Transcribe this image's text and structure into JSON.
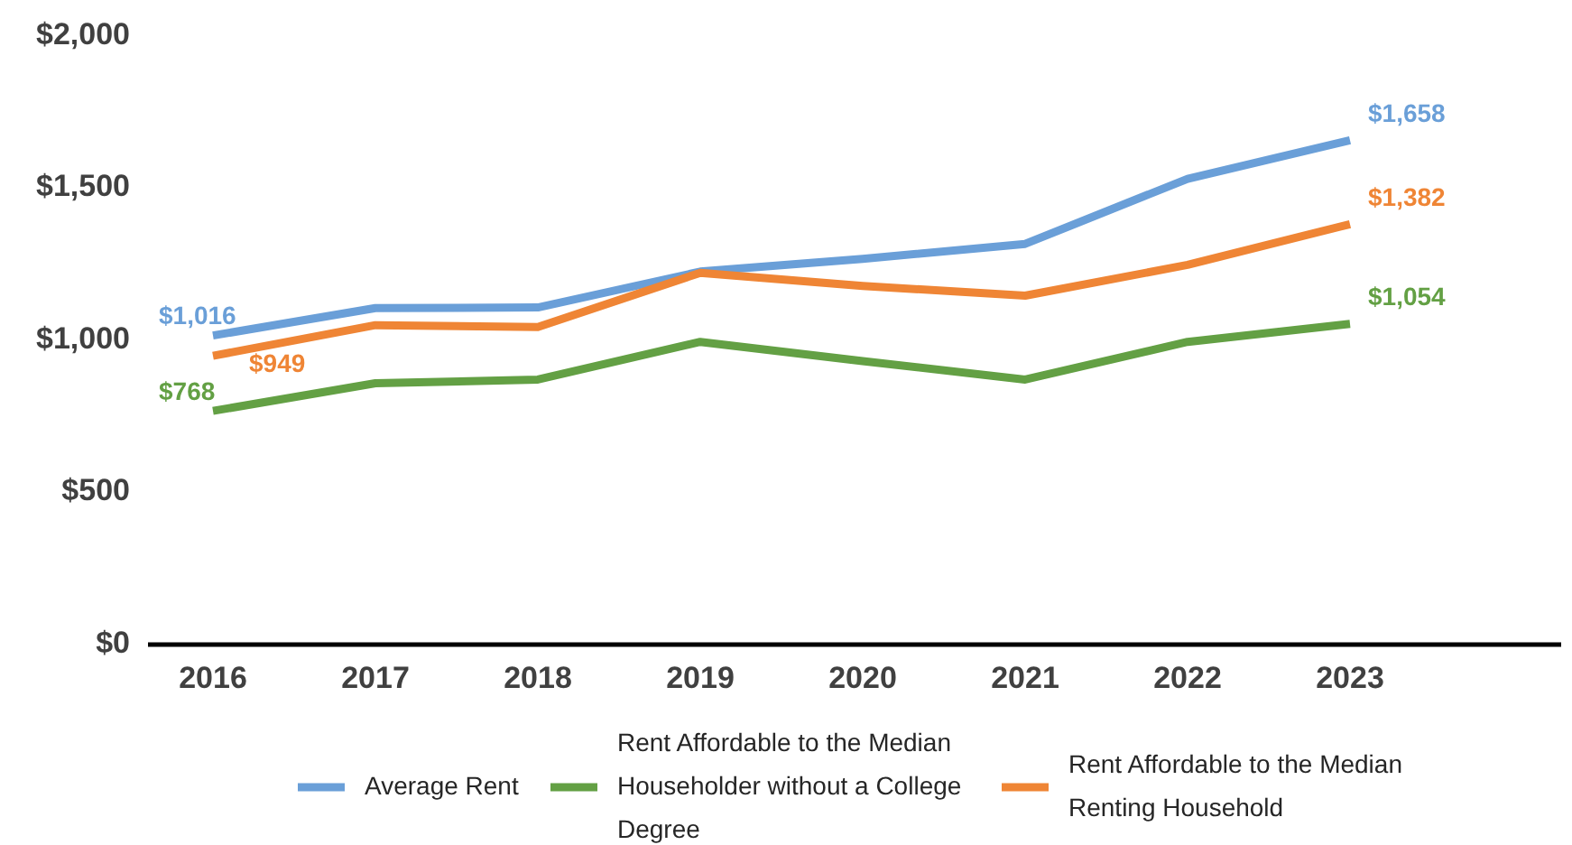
{
  "chart_data": {
    "type": "line",
    "categories": [
      "2016",
      "2017",
      "2018",
      "2019",
      "2020",
      "2021",
      "2022",
      "2023"
    ],
    "ylim": [
      0,
      2000
    ],
    "yticks": [
      {
        "value": 0,
        "label": "$0"
      },
      {
        "value": 500,
        "label": "$500"
      },
      {
        "value": 1000,
        "label": "$1,000"
      },
      {
        "value": 1500,
        "label": "$1,500"
      },
      {
        "value": 2000,
        "label": "$2,000"
      }
    ],
    "grid": false,
    "legend": "bottom",
    "marker": "none",
    "line_style": "solid",
    "series": [
      {
        "name": "Average Rent",
        "color": "#6a9fd8",
        "values": [
          1016,
          1106,
          1108,
          1226,
          1268,
          1317,
          1531,
          1658
        ],
        "value_labels": [
          "$1,016",
          null,
          null,
          null,
          null,
          null,
          null,
          "$1,658"
        ]
      },
      {
        "name": "Rent Affordable to the Median Householder without a College Degree",
        "color": "#63a044",
        "values": [
          768,
          859,
          871,
          995,
          932,
          871,
          995,
          1054
        ],
        "value_labels": [
          "$768",
          null,
          null,
          null,
          null,
          null,
          null,
          "$1,054"
        ]
      },
      {
        "name": "Rent Affordable to the Median Renting Household",
        "color": "#ef8535",
        "values": [
          949,
          1050,
          1044,
          1222,
          1179,
          1147,
          1248,
          1382
        ],
        "value_labels": [
          "$949",
          null,
          null,
          null,
          null,
          null,
          null,
          "$1,382"
        ]
      }
    ]
  }
}
